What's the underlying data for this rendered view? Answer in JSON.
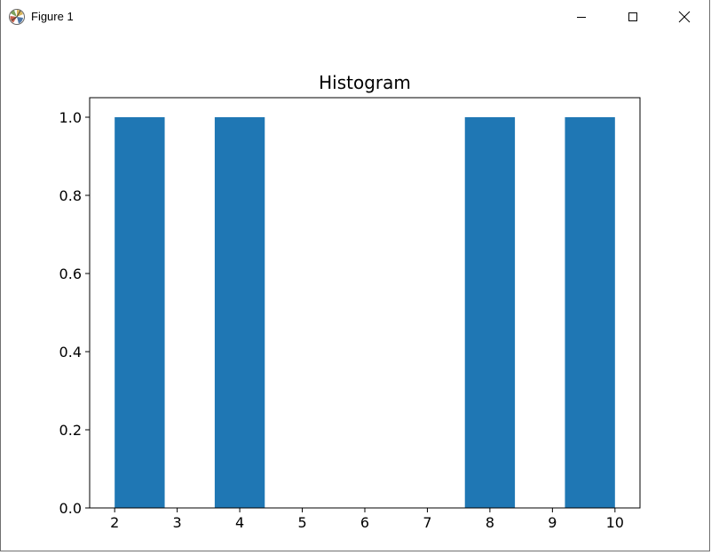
{
  "window": {
    "title": "Figure 1",
    "icons": {
      "app": "matplotlib-figure-icon",
      "minimize": "minimize-icon",
      "maximize": "maximize-icon",
      "close": "close-icon"
    }
  },
  "chart_data": {
    "type": "bar",
    "title": "Histogram",
    "xlabel": "",
    "ylabel": "",
    "bar_color": "#1f77b4",
    "bins": [
      {
        "start": 2.0,
        "end": 2.8,
        "count": 1
      },
      {
        "start": 2.8,
        "end": 3.6,
        "count": 0
      },
      {
        "start": 3.6,
        "end": 4.4,
        "count": 1
      },
      {
        "start": 4.4,
        "end": 5.2,
        "count": 0
      },
      {
        "start": 5.2,
        "end": 6.0,
        "count": 0
      },
      {
        "start": 6.0,
        "end": 6.8,
        "count": 0
      },
      {
        "start": 6.8,
        "end": 7.6,
        "count": 0
      },
      {
        "start": 7.6,
        "end": 8.4,
        "count": 1
      },
      {
        "start": 8.4,
        "end": 9.2,
        "count": 0
      },
      {
        "start": 9.2,
        "end": 10.0,
        "count": 1
      }
    ],
    "xlim": [
      1.6,
      10.4
    ],
    "ylim": [
      0,
      1.05
    ],
    "xticks": [
      2,
      3,
      4,
      5,
      6,
      7,
      8,
      9,
      10
    ],
    "xtick_labels": [
      "2",
      "3",
      "4",
      "5",
      "6",
      "7",
      "8",
      "9",
      "10"
    ],
    "yticks": [
      0.0,
      0.2,
      0.4,
      0.6,
      0.8,
      1.0
    ],
    "ytick_labels": [
      "0.0",
      "0.2",
      "0.4",
      "0.6",
      "0.8",
      "1.0"
    ],
    "grid": false
  }
}
